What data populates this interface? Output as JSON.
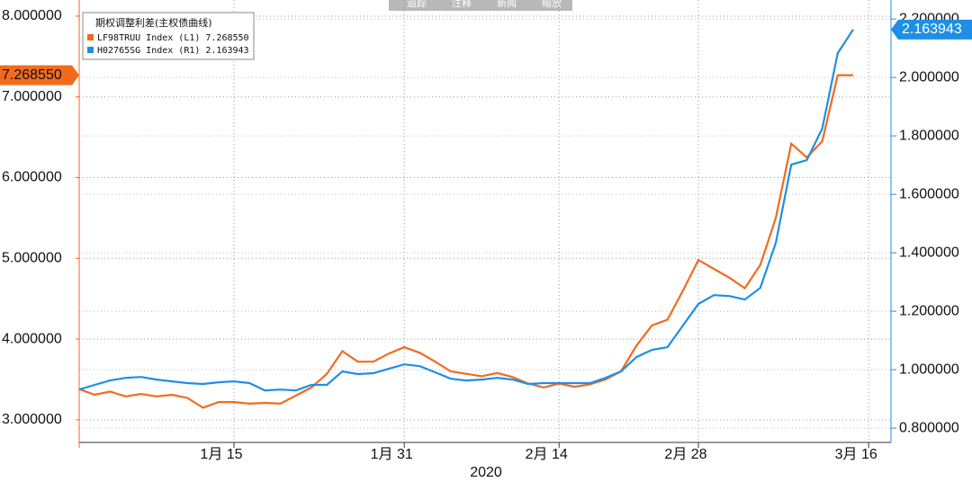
{
  "toolbar": [
    "追踪",
    "注释",
    "新闻",
    "缩放"
  ],
  "chart_data": {
    "type": "line",
    "legend_title": "期权调整利差(主权债曲线)",
    "xlabel": "2020",
    "categories": [
      null,
      null,
      null,
      null,
      null,
      null,
      null,
      null,
      null,
      null,
      "1月 15",
      null,
      null,
      null,
      null,
      null,
      null,
      null,
      null,
      null,
      null,
      "1月 31",
      null,
      null,
      null,
      null,
      null,
      null,
      null,
      null,
      null,
      "2月 14",
      null,
      null,
      null,
      null,
      null,
      null,
      null,
      null,
      "2月 28",
      null,
      null,
      null,
      null,
      null,
      null,
      null,
      null,
      null,
      null,
      "3月 16"
    ],
    "series": [
      {
        "name": "LF98TRUU Index",
        "tag": "(L1)",
        "last_label": "7.268550",
        "color": "#f26b1d",
        "axis": "y",
        "values": [
          3.38,
          3.31,
          3.35,
          3.29,
          3.32,
          3.29,
          3.31,
          3.27,
          3.15,
          3.22,
          3.22,
          3.2,
          3.21,
          3.2,
          3.3,
          3.4,
          3.57,
          3.85,
          3.72,
          3.72,
          3.82,
          3.9,
          3.83,
          3.72,
          3.6,
          3.57,
          3.54,
          3.58,
          3.53,
          3.45,
          3.4,
          3.45,
          3.41,
          3.44,
          3.5,
          3.6,
          3.92,
          4.17,
          4.24,
          4.6,
          4.98,
          4.87,
          4.76,
          4.63,
          4.92,
          5.5,
          6.42,
          6.25,
          6.45,
          7.26855,
          7.26855,
          null
        ]
      },
      {
        "name": "H02765SG Index",
        "tag": "(R1)",
        "last_label": "2.163943",
        "color": "#1e8fe6",
        "axis": "y2",
        "values": [
          0.932,
          0.948,
          0.963,
          0.972,
          0.975,
          0.966,
          0.96,
          0.954,
          0.951,
          0.957,
          0.96,
          0.954,
          0.929,
          0.932,
          0.929,
          0.948,
          0.948,
          0.994,
          0.985,
          0.988,
          1.003,
          1.018,
          1.012,
          0.991,
          0.969,
          0.963,
          0.966,
          0.972,
          0.966,
          0.951,
          0.954,
          0.954,
          0.954,
          0.954,
          0.972,
          0.994,
          1.043,
          1.068,
          1.077,
          1.151,
          1.225,
          1.255,
          1.252,
          1.24,
          1.28,
          1.434,
          1.702,
          1.717,
          1.825,
          2.083,
          2.163943,
          null
        ]
      }
    ],
    "ylim": [
      2.72,
      8.2
    ],
    "yticks": [
      {
        "value": 3,
        "label": "3.000000"
      },
      {
        "value": 4,
        "label": "4.000000"
      },
      {
        "value": 5,
        "label": "5.000000"
      },
      {
        "value": 6,
        "label": "6.000000"
      },
      {
        "value": 7,
        "label": "7.000000"
      },
      {
        "value": 8,
        "label": "8.000000"
      }
    ],
    "y2lim": [
      0.751,
      2.265
    ],
    "y2ticks": [
      {
        "value": 0.8,
        "label": "0.800000"
      },
      {
        "value": 1,
        "label": "1.000000"
      },
      {
        "value": 1.2,
        "label": "1.200000"
      },
      {
        "value": 1.4,
        "label": "1.400000"
      },
      {
        "value": 1.6,
        "label": "1.600000"
      },
      {
        "value": 1.8,
        "label": "1.800000"
      },
      {
        "value": 2,
        "label": "2.000000"
      },
      {
        "value": 2.2,
        "label": "2.200000"
      }
    ],
    "grid": true
  }
}
